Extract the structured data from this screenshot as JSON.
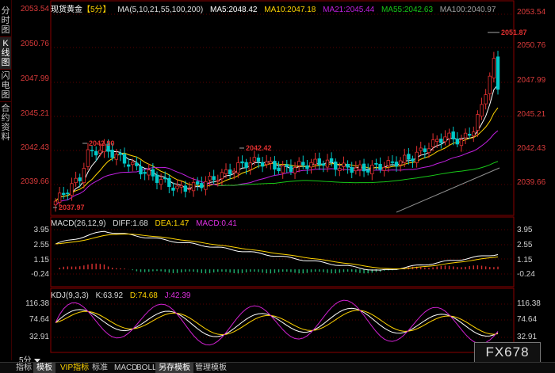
{
  "side_tabs": [
    "分时图",
    "K线图",
    "闪电图",
    "合约资料"
  ],
  "main": {
    "title": "现货黄金",
    "period_bracket": "【5分】",
    "ma_params": "MA(5,10,21,55,100,200)",
    "ma_values": [
      {
        "label": "MA5:2048.42",
        "color": "#ffffff"
      },
      {
        "label": "MA10:2047.18",
        "color": "#ffd400"
      },
      {
        "label": "MA21:2045.44",
        "color": "#c020e0"
      },
      {
        "label": "MA55:2042.63",
        "color": "#18c818"
      },
      {
        "label": "MA100:2040.97",
        "color": "#a0a0a0"
      }
    ],
    "axis_labels": [
      "2053.54",
      "2050.76",
      "2047.99",
      "2045.21",
      "2042.43",
      "2039.66"
    ],
    "annotations": [
      "2051.87",
      "2042.90",
      "2042.42",
      "2037.97"
    ]
  },
  "macd": {
    "label": "MACD(26,12,9)",
    "diff": "DIFF:1.68",
    "dea": "DEA:1.47",
    "macd": "MACD:0.41",
    "axis_labels": [
      "3.95",
      "2.55",
      "1.15",
      "-0.24"
    ]
  },
  "kdj": {
    "label": "KDJ(9,3,3)",
    "k": "K:63.92",
    "d": "D:74.68",
    "j": "J:42.39",
    "axis_labels": [
      "116.38",
      "74.64",
      "32.91"
    ]
  },
  "period_select": "5分",
  "bottom_tabs": [
    "指标",
    "模板",
    "VIP指标",
    "标准",
    "MACD",
    "BOLL",
    "另存模板",
    "管理模板"
  ],
  "logo_text": "FX678",
  "colors": {
    "up": "#e23030",
    "down": "#00c8c8",
    "volume_up": "#d83030",
    "volume_down": "#20b070"
  }
}
